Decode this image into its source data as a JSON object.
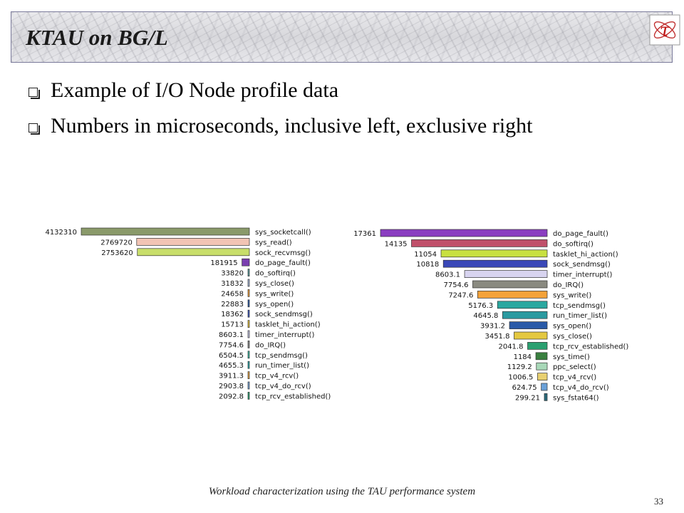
{
  "slide": {
    "title": "KTAU on BG/L",
    "bullets": [
      "Example of I/O Node profile data",
      "Numbers in microseconds, inclusive left, exclusive right"
    ],
    "footer": "Workload characterization using the TAU performance system",
    "page_number": "33",
    "logo_glyph": "τ"
  },
  "chart_data": [
    {
      "type": "bar",
      "orientation": "horizontal",
      "x_direction": "right-to-left",
      "grid": false,
      "categories": [
        "sys_socketcall()",
        "sys_read()",
        "sock_recvmsg()",
        "do_page_fault()",
        "do_softirq()",
        "sys_close()",
        "sys_write()",
        "sys_open()",
        "sock_sendmsg()",
        "tasklet_hi_action()",
        "timer_interrupt()",
        "do_IRQ()",
        "tcp_sendmsg()",
        "run_timer_list()",
        "tcp_v4_rcv()",
        "tcp_v4_do_rcv()",
        "tcp_rcv_established()"
      ],
      "value_labels": [
        "4132310",
        "2769720",
        "2753620",
        "181915",
        "33820",
        "31832",
        "24658",
        "22883",
        "18362",
        "15713",
        "8603.1",
        "7754.6",
        "6504.5",
        "4655.3",
        "3911.3",
        "2903.8",
        "2092.8"
      ],
      "values": [
        4132310,
        2769720,
        2753620,
        181915,
        33820,
        31832,
        24658,
        22883,
        18362,
        15713,
        8603.1,
        7754.6,
        6504.5,
        4655.3,
        3911.3,
        2903.8,
        2092.8
      ],
      "colors": [
        "#8a9a6a",
        "#f2c4b4",
        "#c8de6a",
        "#7a3fb0",
        "#5a9a9a",
        "#a8b8d8",
        "#f4a23a",
        "#2a5aa8",
        "#3a58c0",
        "#e8c33a",
        "#c8c8e8",
        "#8a8a8a",
        "#3ab8a0",
        "#26a6a8",
        "#e4a040",
        "#7aa6d8",
        "#2aa070"
      ]
    },
    {
      "type": "bar",
      "orientation": "horizontal",
      "x_direction": "right-to-left",
      "grid": false,
      "categories": [
        "do_page_fault()",
        "do_softirq()",
        "tasklet_hi_action()",
        "sock_sendmsg()",
        "timer_interrupt()",
        "do_IRQ()",
        "sys_write()",
        "tcp_sendmsg()",
        "run_timer_list()",
        "sys_open()",
        "sys_close()",
        "tcp_rcv_established()",
        "sys_time()",
        "ppc_select()",
        "tcp_v4_rcv()",
        "tcp_v4_do_rcv()",
        "sys_fstat64()"
      ],
      "value_labels": [
        "17361",
        "14135",
        "11054",
        "10818",
        "8603.1",
        "7754.6",
        "7247.6",
        "5176.3",
        "4645.8",
        "3931.2",
        "3451.8",
        "2041.8",
        "1184",
        "1129.2",
        "1006.5",
        "624.75",
        "299.21"
      ],
      "values": [
        17361,
        14135,
        11054,
        10818,
        8603.1,
        7754.6,
        7247.6,
        5176.3,
        4645.8,
        3931.2,
        3451.8,
        2041.8,
        1184,
        1129.2,
        1006.5,
        624.75,
        299.21
      ],
      "colors": [
        "#8a3ec0",
        "#c0506a",
        "#c8e040",
        "#3a48b8",
        "#d8d4f0",
        "#8a8a80",
        "#f4a23a",
        "#2aa8a0",
        "#2a9aa0",
        "#2a5aa8",
        "#e4c840",
        "#2aa070",
        "#3a8040",
        "#a8d8b8",
        "#e8d070",
        "#6aa0d8",
        "#2a6a7a"
      ]
    }
  ]
}
